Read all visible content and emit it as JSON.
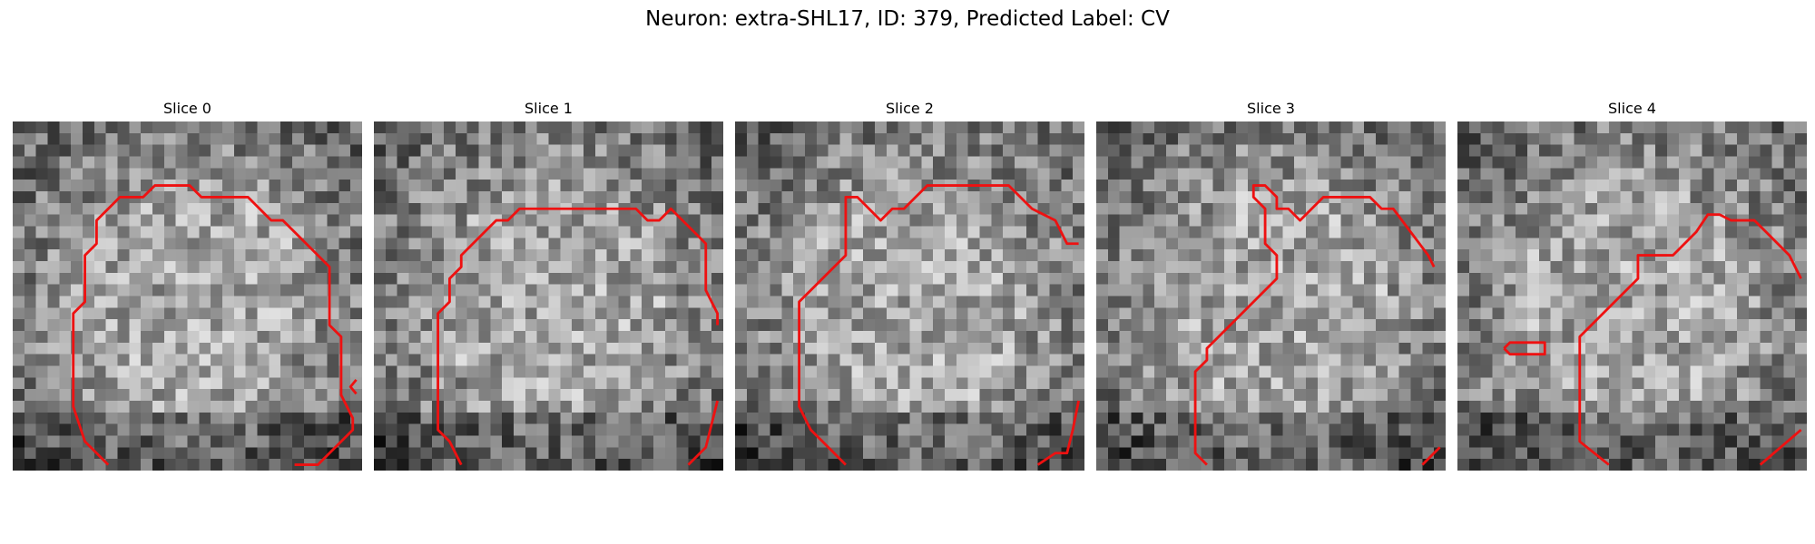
{
  "figure": {
    "title": "Neuron: extra-SHL17, ID: 379, Predicted Label: CV"
  },
  "slices": [
    {
      "title": "Slice 0",
      "seed": 11,
      "contour_color": "#ee1111",
      "contours": [
        [
          [
            8.2,
            29.5
          ],
          [
            6.2,
            27.5
          ],
          [
            5.2,
            24.5
          ],
          [
            5.2,
            16.5
          ],
          [
            6.2,
            15.5
          ],
          [
            6.2,
            11.5
          ],
          [
            7.2,
            10.5
          ],
          [
            7.2,
            8.5
          ],
          [
            9.2,
            6.5
          ],
          [
            11.2,
            6.5
          ],
          [
            12.2,
            5.5
          ],
          [
            13.2,
            5.5
          ],
          [
            15.2,
            5.5
          ],
          [
            16.2,
            6.5
          ],
          [
            20.2,
            6.5
          ],
          [
            22.2,
            8.5
          ],
          [
            23.2,
            8.5
          ],
          [
            24.2,
            9.5
          ],
          [
            27.2,
            12.5
          ],
          [
            27.2,
            14.5
          ],
          [
            27.2,
            17.5
          ],
          [
            28.2,
            18.5
          ],
          [
            28.2,
            23.5
          ],
          [
            29.2,
            25.5
          ],
          [
            29.2,
            26.5
          ],
          [
            26.2,
            29.5
          ],
          [
            24.2,
            29.5
          ]
        ],
        [
          [
            29.5,
            22.2
          ],
          [
            29.0,
            22.8
          ],
          [
            29.5,
            23.4
          ]
        ]
      ]
    },
    {
      "title": "Slice 1",
      "seed": 23,
      "contour_color": "#ee1111",
      "contours": [
        [
          [
            7.5,
            29.5
          ],
          [
            6.5,
            27.5
          ],
          [
            5.5,
            26.5
          ],
          [
            5.5,
            16.5
          ],
          [
            6.5,
            15.5
          ],
          [
            6.5,
            13.5
          ],
          [
            7.5,
            12.5
          ],
          [
            7.5,
            11.5
          ],
          [
            10.5,
            8.5
          ],
          [
            11.5,
            8.5
          ],
          [
            12.5,
            7.5
          ],
          [
            22.5,
            7.5
          ],
          [
            23.5,
            8.5
          ],
          [
            24.5,
            8.5
          ],
          [
            25.5,
            7.5
          ],
          [
            27.5,
            9.5
          ],
          [
            28.5,
            10.5
          ],
          [
            28.5,
            13.5
          ],
          [
            28.5,
            14.5
          ],
          [
            29.5,
            16.5
          ],
          [
            29.5,
            17.5
          ]
        ],
        [
          [
            27.0,
            29.5
          ],
          [
            28.5,
            28.0
          ],
          [
            29.5,
            24.0
          ]
        ]
      ]
    },
    {
      "title": "Slice 2",
      "seed": 37,
      "contour_color": "#ee1111",
      "contours": [
        [
          [
            9.5,
            29.5
          ],
          [
            7.5,
            27.5
          ],
          [
            6.5,
            26.5
          ],
          [
            5.5,
            24.5
          ],
          [
            5.5,
            20.5
          ],
          [
            5.5,
            17.5
          ],
          [
            5.5,
            15.5
          ],
          [
            6.5,
            14.5
          ],
          [
            9.5,
            11.5
          ],
          [
            9.5,
            6.5
          ],
          [
            10.5,
            6.5
          ],
          [
            12.5,
            8.5
          ],
          [
            13.5,
            7.5
          ],
          [
            14.5,
            7.5
          ],
          [
            15.5,
            6.5
          ],
          [
            16.5,
            5.5
          ],
          [
            23.5,
            5.5
          ],
          [
            25.5,
            7.5
          ],
          [
            27.5,
            8.5
          ],
          [
            28.5,
            10.5
          ],
          [
            29.5,
            10.5
          ]
        ],
        [
          [
            26.0,
            29.5
          ],
          [
            27.5,
            28.5
          ],
          [
            28.5,
            28.5
          ],
          [
            29.0,
            26.5
          ],
          [
            29.5,
            24.0
          ]
        ]
      ]
    },
    {
      "title": "Slice 3",
      "seed": 53,
      "contour_color": "#ee1111",
      "contours": [
        [
          [
            9.5,
            29.5
          ],
          [
            8.5,
            28.5
          ],
          [
            8.5,
            21.5
          ],
          [
            9.5,
            20.5
          ],
          [
            9.5,
            19.5
          ],
          [
            11.5,
            17.5
          ],
          [
            15.5,
            13.5
          ],
          [
            15.5,
            11.5
          ],
          [
            14.5,
            10.5
          ],
          [
            14.5,
            7.5
          ],
          [
            13.5,
            6.5
          ],
          [
            13.5,
            5.5
          ],
          [
            14.5,
            5.5
          ],
          [
            15.5,
            6.5
          ],
          [
            15.5,
            7.5
          ],
          [
            16.5,
            7.5
          ],
          [
            17.5,
            8.5
          ],
          [
            18.5,
            7.5
          ],
          [
            19.5,
            6.5
          ],
          [
            23.5,
            6.5
          ],
          [
            24.5,
            7.5
          ],
          [
            25.5,
            7.5
          ],
          [
            28.5,
            11.5
          ],
          [
            29.0,
            12.5
          ]
        ],
        [
          [
            28.0,
            29.5
          ],
          [
            29.5,
            28.0
          ]
        ]
      ]
    },
    {
      "title": "Slice 4",
      "seed": 71,
      "contour_color": "#ee1111",
      "contours": [
        [
          [
            13.0,
            29.5
          ],
          [
            10.5,
            27.5
          ],
          [
            10.5,
            18.5
          ],
          [
            13.5,
            15.5
          ],
          [
            15.5,
            13.5
          ],
          [
            15.5,
            11.5
          ],
          [
            16.5,
            11.5
          ],
          [
            18.5,
            11.5
          ],
          [
            20.5,
            9.5
          ],
          [
            21.5,
            8.0
          ],
          [
            22.5,
            8.0
          ],
          [
            23.5,
            8.5
          ],
          [
            25.5,
            8.5
          ],
          [
            26.5,
            9.5
          ],
          [
            28.5,
            11.5
          ],
          [
            29.5,
            13.5
          ]
        ],
        [
          [
            4.0,
            19.5
          ],
          [
            4.5,
            19.0
          ],
          [
            7.5,
            19.0
          ],
          [
            7.5,
            20.0
          ],
          [
            4.5,
            20.0
          ],
          [
            4.0,
            19.5
          ]
        ],
        [
          [
            26.0,
            29.5
          ],
          [
            29.5,
            26.5
          ]
        ]
      ]
    }
  ]
}
